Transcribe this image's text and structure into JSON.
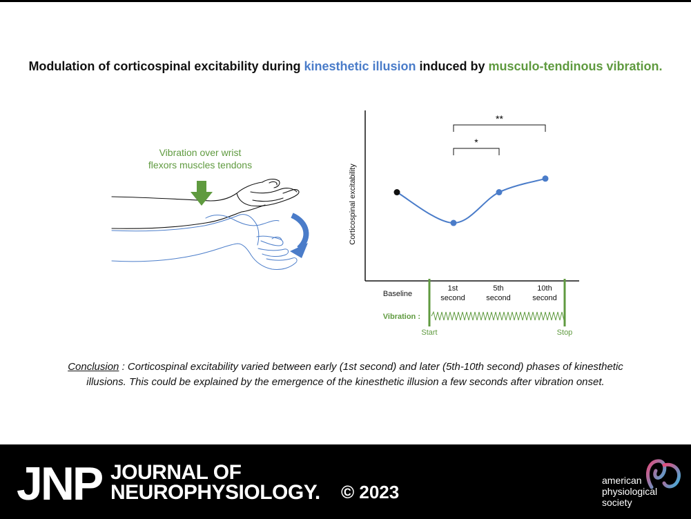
{
  "title": {
    "part1": "Modulation of corticospinal excitability during ",
    "highlight1": "kinesthetic illusion",
    "part2": " induced by ",
    "highlight2": "musculo-tendinous vibration."
  },
  "illustration": {
    "label_line1": "Vibration over wrist",
    "label_line2": "flexors muscles tendons"
  },
  "chart_data": {
    "type": "line",
    "ylabel": "Corticospinal excitability",
    "categories": [
      "Baseline",
      "1st second",
      "5th second",
      "10th second"
    ],
    "x_labels": [
      [
        "Baseline"
      ],
      [
        "1st",
        "second"
      ],
      [
        "5th",
        "second"
      ],
      [
        "10th",
        "second"
      ]
    ],
    "series": [
      {
        "values": [
          0.52,
          0.34,
          0.52,
          0.6
        ]
      }
    ],
    "significance": [
      {
        "from": "1st second",
        "to": "5th second",
        "label": "*"
      },
      {
        "from": "1st second",
        "to": "10th second",
        "label": "**"
      }
    ],
    "vibration_label": "Vibration :",
    "start_label": "Start",
    "stop_label": "Stop",
    "colors": {
      "line": "#4a7cc9",
      "baseline_point": "#111111",
      "vibration": "#5f9a3f"
    }
  },
  "conclusion": {
    "lead": "Conclusion",
    "line1": " : Corticospinal excitability varied between early (1st second) and later (5th-10th second) phases of kinesthetic",
    "line2": "illusions. This could be explained by the emergence of the kinesthetic illusion a few seconds after vibration onset."
  },
  "footer": {
    "logo": "JNP",
    "journal_line1": "JOURNAL OF",
    "journal_line2": "NEUROPHYSIOLOGY.",
    "copyright": "© 2023",
    "society_line1": "american",
    "society_line2": "physiological",
    "society_line3": "society"
  }
}
